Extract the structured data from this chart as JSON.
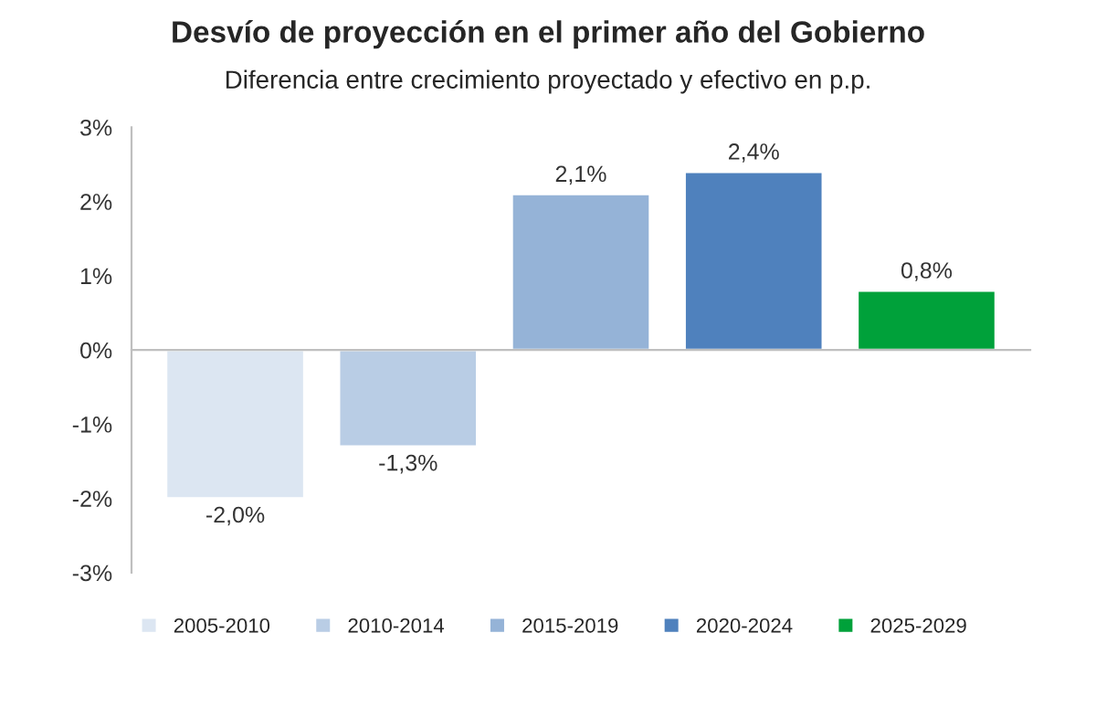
{
  "chart_data": {
    "type": "bar",
    "title": "Desvío de proyección en el primer año del Gobierno",
    "subtitle": "Diferencia entre crecimiento proyectado y efectivo en p.p.",
    "categories": [
      null,
      null,
      null,
      null,
      null
    ],
    "series": [
      {
        "name": "2005-2010",
        "color": "#dce6f2",
        "values": [
          -2.0,
          null,
          null,
          null,
          null
        ],
        "value_labels": [
          "-2,0%",
          null,
          null,
          null,
          null
        ]
      },
      {
        "name": "2010-2014",
        "color": "#b9cde5",
        "values": [
          null,
          -1.3,
          null,
          null,
          null
        ],
        "value_labels": [
          null,
          "-1,3%",
          null,
          null,
          null
        ]
      },
      {
        "name": "2015-2019",
        "color": "#95b3d7",
        "values": [
          null,
          null,
          2.1,
          null,
          null
        ],
        "value_labels": [
          null,
          null,
          "2,1%",
          null,
          null
        ]
      },
      {
        "name": "2020-2024",
        "color": "#4f81bd",
        "values": [
          null,
          null,
          null,
          2.4,
          null
        ],
        "value_labels": [
          null,
          null,
          null,
          "2,4%",
          null
        ]
      },
      {
        "name": "2025-2029",
        "color": "#00a13a",
        "values": [
          null,
          null,
          null,
          null,
          0.8
        ],
        "value_labels": [
          null,
          null,
          null,
          null,
          "0,8%"
        ]
      }
    ],
    "ylim": [
      -3,
      3
    ],
    "yticks": [
      {
        "value": -3,
        "label": "-3%"
      },
      {
        "value": -2,
        "label": "-2%"
      },
      {
        "value": -1,
        "label": "-1%"
      },
      {
        "value": 0,
        "label": "0%"
      },
      {
        "value": 1,
        "label": "1%"
      },
      {
        "value": 2,
        "label": "2%"
      },
      {
        "value": 3,
        "label": "3%"
      }
    ],
    "tick_labels": "y",
    "legend": "bottom"
  }
}
